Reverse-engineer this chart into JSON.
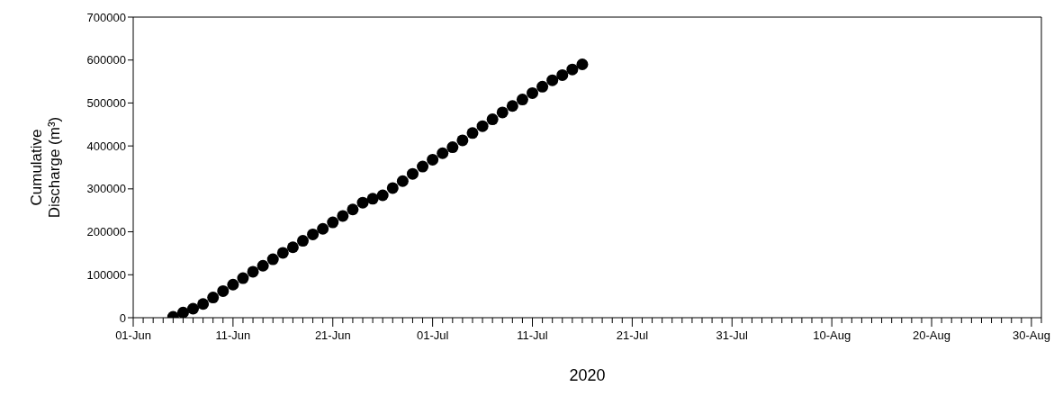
{
  "chart_data": {
    "type": "scatter",
    "xlabel": "2020",
    "ylabel": "Cumulative\nDischarge (m³)",
    "marker": "circle",
    "x": [
      "2020-06-05",
      "2020-06-06",
      "2020-06-07",
      "2020-06-08",
      "2020-06-09",
      "2020-06-10",
      "2020-06-11",
      "2020-06-12",
      "2020-06-13",
      "2020-06-14",
      "2020-06-15",
      "2020-06-16",
      "2020-06-17",
      "2020-06-18",
      "2020-06-19",
      "2020-06-20",
      "2020-06-21",
      "2020-06-22",
      "2020-06-23",
      "2020-06-24",
      "2020-06-25",
      "2020-06-26",
      "2020-06-27",
      "2020-06-28",
      "2020-06-29",
      "2020-06-30",
      "2020-07-01",
      "2020-07-02",
      "2020-07-03",
      "2020-07-04",
      "2020-07-05",
      "2020-07-06",
      "2020-07-07",
      "2020-07-08",
      "2020-07-09",
      "2020-07-10",
      "2020-07-11",
      "2020-07-12",
      "2020-07-13",
      "2020-07-14",
      "2020-07-15",
      "2020-07-16"
    ],
    "series": [
      {
        "color": "#000000",
        "values": [
          2000,
          12000,
          21000,
          32000,
          47000,
          62000,
          77000,
          92000,
          107000,
          121000,
          136000,
          151000,
          164000,
          179000,
          194000,
          207000,
          222000,
          237000,
          252000,
          268000,
          277000,
          285000,
          302000,
          318000,
          335000,
          352000,
          368000,
          383000,
          397000,
          413000,
          430000,
          446000,
          462000,
          478000,
          493000,
          508000,
          523000,
          538000,
          553000,
          565000,
          578000,
          590000
        ]
      }
    ],
    "xlim": [
      "2020-06-01",
      "2020-08-31"
    ],
    "xticks": [
      {
        "value": "2020-06-01",
        "label": "01-Jun"
      },
      {
        "value": "2020-06-02",
        "label": null
      },
      {
        "value": "2020-06-03",
        "label": null
      },
      {
        "value": "2020-06-04",
        "label": null
      },
      {
        "value": "2020-06-05",
        "label": null
      },
      {
        "value": "2020-06-06",
        "label": null
      },
      {
        "value": "2020-06-07",
        "label": null
      },
      {
        "value": "2020-06-08",
        "label": null
      },
      {
        "value": "2020-06-09",
        "label": null
      },
      {
        "value": "2020-06-10",
        "label": null
      },
      {
        "value": "2020-06-11",
        "label": "11-Jun"
      },
      {
        "value": "2020-06-12",
        "label": null
      },
      {
        "value": "2020-06-13",
        "label": null
      },
      {
        "value": "2020-06-14",
        "label": null
      },
      {
        "value": "2020-06-15",
        "label": null
      },
      {
        "value": "2020-06-16",
        "label": null
      },
      {
        "value": "2020-06-17",
        "label": null
      },
      {
        "value": "2020-06-18",
        "label": null
      },
      {
        "value": "2020-06-19",
        "label": null
      },
      {
        "value": "2020-06-20",
        "label": null
      },
      {
        "value": "2020-06-21",
        "label": "21-Jun"
      },
      {
        "value": "2020-06-22",
        "label": null
      },
      {
        "value": "2020-06-23",
        "label": null
      },
      {
        "value": "2020-06-24",
        "label": null
      },
      {
        "value": "2020-06-25",
        "label": null
      },
      {
        "value": "2020-06-26",
        "label": null
      },
      {
        "value": "2020-06-27",
        "label": null
      },
      {
        "value": "2020-06-28",
        "label": null
      },
      {
        "value": "2020-06-29",
        "label": null
      },
      {
        "value": "2020-06-30",
        "label": null
      },
      {
        "value": "2020-07-01",
        "label": "01-Jul"
      },
      {
        "value": "2020-07-02",
        "label": null
      },
      {
        "value": "2020-07-03",
        "label": null
      },
      {
        "value": "2020-07-04",
        "label": null
      },
      {
        "value": "2020-07-05",
        "label": null
      },
      {
        "value": "2020-07-06",
        "label": null
      },
      {
        "value": "2020-07-07",
        "label": null
      },
      {
        "value": "2020-07-08",
        "label": null
      },
      {
        "value": "2020-07-09",
        "label": null
      },
      {
        "value": "2020-07-10",
        "label": null
      },
      {
        "value": "2020-07-11",
        "label": "11-Jul"
      },
      {
        "value": "2020-07-12",
        "label": null
      },
      {
        "value": "2020-07-13",
        "label": null
      },
      {
        "value": "2020-07-14",
        "label": null
      },
      {
        "value": "2020-07-15",
        "label": null
      },
      {
        "value": "2020-07-16",
        "label": null
      },
      {
        "value": "2020-07-17",
        "label": null
      },
      {
        "value": "2020-07-18",
        "label": null
      },
      {
        "value": "2020-07-19",
        "label": null
      },
      {
        "value": "2020-07-20",
        "label": null
      },
      {
        "value": "2020-07-21",
        "label": "21-Jul"
      },
      {
        "value": "2020-07-22",
        "label": null
      },
      {
        "value": "2020-07-23",
        "label": null
      },
      {
        "value": "2020-07-24",
        "label": null
      },
      {
        "value": "2020-07-25",
        "label": null
      },
      {
        "value": "2020-07-26",
        "label": null
      },
      {
        "value": "2020-07-27",
        "label": null
      },
      {
        "value": "2020-07-28",
        "label": null
      },
      {
        "value": "2020-07-29",
        "label": null
      },
      {
        "value": "2020-07-30",
        "label": null
      },
      {
        "value": "2020-07-31",
        "label": "31-Jul"
      },
      {
        "value": "2020-08-01",
        "label": null
      },
      {
        "value": "2020-08-02",
        "label": null
      },
      {
        "value": "2020-08-03",
        "label": null
      },
      {
        "value": "2020-08-04",
        "label": null
      },
      {
        "value": "2020-08-05",
        "label": null
      },
      {
        "value": "2020-08-06",
        "label": null
      },
      {
        "value": "2020-08-07",
        "label": null
      },
      {
        "value": "2020-08-08",
        "label": null
      },
      {
        "value": "2020-08-09",
        "label": null
      },
      {
        "value": "2020-08-10",
        "label": "10-Aug"
      },
      {
        "value": "2020-08-11",
        "label": null
      },
      {
        "value": "2020-08-12",
        "label": null
      },
      {
        "value": "2020-08-13",
        "label": null
      },
      {
        "value": "2020-08-14",
        "label": null
      },
      {
        "value": "2020-08-15",
        "label": null
      },
      {
        "value": "2020-08-16",
        "label": null
      },
      {
        "value": "2020-08-17",
        "label": null
      },
      {
        "value": "2020-08-18",
        "label": null
      },
      {
        "value": "2020-08-19",
        "label": null
      },
      {
        "value": "2020-08-20",
        "label": "20-Aug"
      },
      {
        "value": "2020-08-21",
        "label": null
      },
      {
        "value": "2020-08-22",
        "label": null
      },
      {
        "value": "2020-08-23",
        "label": null
      },
      {
        "value": "2020-08-24",
        "label": null
      },
      {
        "value": "2020-08-25",
        "label": null
      },
      {
        "value": "2020-08-26",
        "label": null
      },
      {
        "value": "2020-08-27",
        "label": null
      },
      {
        "value": "2020-08-28",
        "label": null
      },
      {
        "value": "2020-08-29",
        "label": null
      },
      {
        "value": "2020-08-30",
        "label": "30-Aug"
      },
      {
        "value": "2020-08-31",
        "label": null
      }
    ],
    "ylim": [
      0,
      700000
    ],
    "yticks": [
      0,
      100000,
      200000,
      300000,
      400000,
      500000,
      600000,
      700000
    ]
  }
}
